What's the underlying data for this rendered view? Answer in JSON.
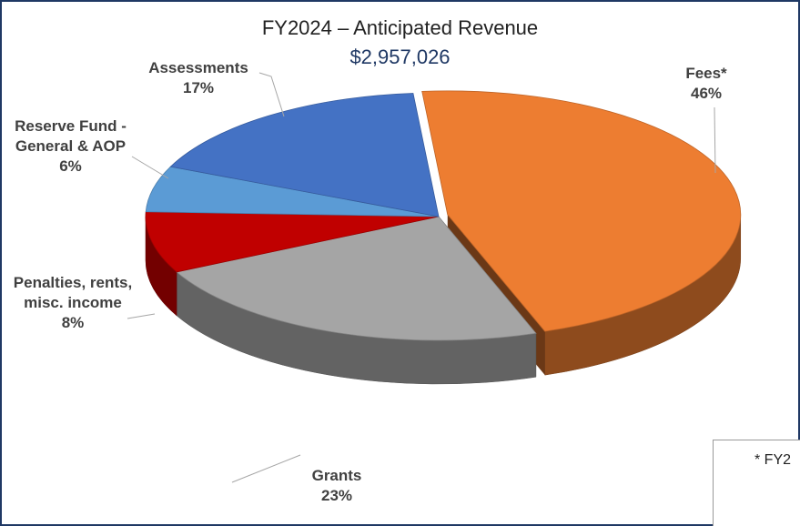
{
  "chart_data": {
    "type": "pie",
    "title": "FY2024 – Anticipated Revenue",
    "subtitle": "$2,957,026",
    "categories": [
      "Fees*",
      "Grants",
      "Penalties, rents, misc. income",
      "Reserve Fund - General & AOP",
      "Assessments"
    ],
    "values": [
      46,
      23,
      8,
      6,
      17
    ],
    "value_labels": [
      "46%",
      "23%",
      "8%",
      "6%",
      "17%"
    ],
    "colors": [
      "#ED7D31",
      "#A5A5A5",
      "#C00000",
      "#5B9BD5",
      "#4472C4"
    ],
    "note": "* FY2"
  }
}
